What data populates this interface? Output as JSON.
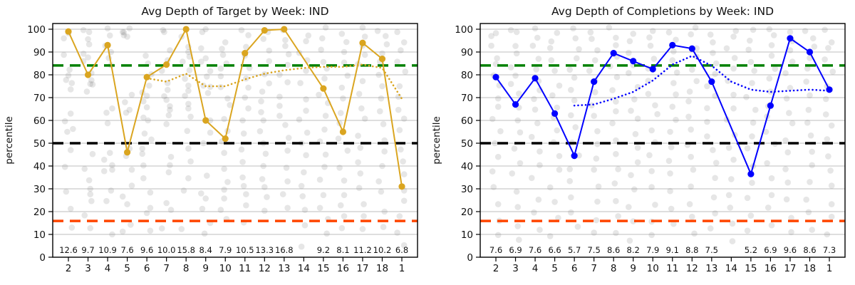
{
  "chart_data": [
    {
      "type": "line",
      "title": "Avg Depth of Target by Week: IND",
      "ylabel": "percentile",
      "color": "#DAA520",
      "weeks": [
        "2",
        "3",
        "4",
        "5",
        "6",
        "7",
        "8",
        "9",
        "10",
        "11",
        "12",
        "13",
        "14",
        "15",
        "16",
        "17",
        "18",
        "1"
      ],
      "series": [
        {
          "name": "weekly-avg-target-depth-percentile",
          "style": "solid-markers",
          "values": [
            99,
            80,
            93,
            46,
            79,
            84.5,
            100,
            60,
            52,
            89.5,
            99.5,
            100,
            null,
            74,
            55,
            94,
            87,
            31
          ]
        },
        {
          "name": "rolling-mean",
          "style": "dotted",
          "values": [
            null,
            null,
            null,
            null,
            78.5,
            77,
            80.5,
            75,
            75,
            78,
            80.5,
            82,
            83,
            83.5,
            83.5,
            84.5,
            83,
            69.5
          ]
        }
      ],
      "annotations": [
        "12.6",
        "9.7",
        "10.9",
        "7.6",
        "9.6",
        "10.0",
        "15.8",
        "8.4",
        "7.9",
        "10.5",
        "13.3",
        "16.8",
        "",
        "9.2",
        "8.1",
        "11.2",
        "10.2",
        "6.8"
      ],
      "background_points": [
        [
          99,
          96,
          88,
          83,
          79,
          77,
          76,
          74,
          63,
          60,
          57,
          55,
          47,
          40,
          28,
          22,
          13
        ],
        [
          100,
          98,
          96,
          93,
          90,
          88,
          86,
          80,
          78,
          76,
          75,
          73,
          46,
          38,
          33,
          30,
          28,
          25,
          18,
          12
        ],
        [
          100,
          98,
          92,
          90,
          87,
          85,
          66,
          63,
          58,
          45,
          42,
          40,
          38,
          37,
          30,
          25,
          10
        ],
        [
          100,
          99,
          98,
          97,
          96,
          72,
          68,
          65,
          63,
          48,
          44,
          38,
          31,
          27,
          24,
          15,
          12
        ],
        [
          88,
          85,
          81,
          76,
          73,
          70,
          68,
          65,
          62,
          60,
          55,
          52,
          48,
          45,
          41,
          35,
          28,
          22,
          19,
          12
        ],
        [
          100,
          98,
          90,
          86,
          81,
          76,
          73,
          71,
          69,
          67,
          65,
          63,
          58,
          44,
          40,
          38,
          23,
          20,
          13
        ],
        [
          96,
          93,
          90,
          88,
          85,
          82,
          79,
          76,
          73,
          70,
          68,
          66,
          62,
          55,
          48,
          42,
          35,
          30,
          12
        ],
        [
          100,
          98,
          92,
          88,
          85,
          82,
          80,
          76,
          74,
          72,
          60,
          55,
          50,
          35,
          28,
          25,
          22,
          15,
          10
        ],
        [
          95,
          91,
          88,
          85,
          82,
          79,
          75,
          70,
          66,
          61,
          55,
          50,
          45,
          38,
          33,
          30,
          25,
          20,
          16
        ],
        [
          100,
          97,
          93,
          88,
          83,
          78,
          74,
          70,
          66,
          60,
          55,
          48,
          41,
          35,
          32,
          28,
          22,
          16
        ],
        [
          98,
          95,
          91,
          86,
          81,
          77,
          73,
          68,
          64,
          60,
          56,
          50,
          45,
          40,
          35,
          30,
          26,
          20
        ],
        [
          100,
          96,
          93,
          89,
          84,
          80,
          76,
          70,
          66,
          62,
          58,
          52,
          46,
          40,
          34,
          28,
          22
        ],
        [
          98,
          94,
          90,
          86,
          81,
          76,
          70,
          65,
          60,
          55,
          50,
          44,
          38,
          32,
          26,
          20,
          14,
          5
        ],
        [
          100,
          96,
          91,
          86,
          82,
          78,
          72,
          68,
          62,
          56,
          50,
          45,
          40,
          34,
          28,
          22,
          16,
          10
        ],
        [
          98,
          94,
          90,
          85,
          80,
          74,
          70,
          64,
          58,
          52,
          46,
          40,
          34,
          28,
          22,
          18,
          12
        ],
        [
          100,
          96,
          92,
          88,
          84,
          78,
          72,
          66,
          60,
          54,
          48,
          42,
          36,
          30,
          24,
          18,
          12
        ],
        [
          100,
          97,
          93,
          89,
          85,
          80,
          75,
          70,
          64,
          58,
          52,
          46,
          40,
          34,
          28,
          20,
          14
        ],
        [
          98,
          95,
          90,
          85,
          81,
          75,
          70,
          65,
          60,
          55,
          48,
          42,
          36,
          30,
          24,
          18,
          10,
          6
        ]
      ]
    },
    {
      "type": "line",
      "title": "Avg Depth of Completions by Week: IND",
      "ylabel": "percentile",
      "color": "#0000FF",
      "weeks": [
        "2",
        "3",
        "4",
        "5",
        "6",
        "7",
        "8",
        "9",
        "10",
        "11",
        "12",
        "13",
        "14",
        "15",
        "16",
        "17",
        "18",
        "1"
      ],
      "series": [
        {
          "name": "weekly-avg-completion-depth-percentile",
          "style": "solid-markers",
          "values": [
            79,
            67,
            78.5,
            63,
            44.5,
            77,
            89.5,
            86,
            82.5,
            93,
            91.5,
            77,
            null,
            36.5,
            66.5,
            96,
            90,
            73.5
          ]
        },
        {
          "name": "rolling-mean",
          "style": "dotted",
          "values": [
            null,
            null,
            null,
            null,
            66.5,
            67,
            69.5,
            72.5,
            77.5,
            84.5,
            88.3,
            84,
            77,
            73.5,
            72.5,
            73,
            73.5,
            73
          ]
        }
      ],
      "annotations": [
        "7.6",
        "6.9",
        "7.6",
        "6.6",
        "5.7",
        "7.5",
        "8.6",
        "8.2",
        "7.9",
        "9.1",
        "8.8",
        "7.5",
        "",
        "5.2",
        "6.9",
        "9.6",
        "8.6",
        "7.3"
      ],
      "background_points": [
        [
          99,
          97,
          92,
          88,
          84,
          79,
          75,
          70,
          66,
          61,
          56,
          50,
          44,
          38,
          30,
          24,
          16,
          9
        ],
        [
          100,
          98,
          93,
          89,
          84,
          80,
          76,
          71,
          66,
          60,
          54,
          48,
          42,
          36,
          28,
          22,
          14,
          8
        ],
        [
          100,
          97,
          92,
          87,
          82,
          78,
          74,
          69,
          64,
          58,
          52,
          46,
          40,
          34,
          26,
          20,
          12
        ],
        [
          98,
          95,
          91,
          86,
          81,
          76,
          71,
          66,
          61,
          56,
          50,
          44,
          38,
          31,
          25,
          18,
          10
        ],
        [
          100,
          96,
          92,
          88,
          83,
          78,
          73,
          68,
          63,
          57,
          51,
          45,
          39,
          33,
          27,
          20,
          13
        ],
        [
          99,
          95,
          90,
          86,
          81,
          77,
          72,
          67,
          62,
          56,
          50,
          44,
          38,
          31,
          24,
          17,
          10
        ],
        [
          100,
          97,
          93,
          88,
          83,
          79,
          74,
          69,
          64,
          58,
          52,
          46,
          39,
          32,
          25,
          18,
          11
        ],
        [
          98,
          94,
          90,
          85,
          80,
          75,
          70,
          65,
          60,
          54,
          48,
          42,
          36,
          29,
          22,
          15,
          8
        ],
        [
          100,
          96,
          92,
          87,
          82,
          77,
          72,
          67,
          62,
          56,
          50,
          44,
          37,
          30,
          23,
          16,
          9
        ],
        [
          99,
          95,
          91,
          86,
          81,
          76,
          71,
          66,
          61,
          55,
          49,
          43,
          36,
          29,
          22,
          15
        ],
        [
          100,
          97,
          92,
          88,
          83,
          78,
          73,
          68,
          62,
          56,
          50,
          44,
          38,
          31,
          24,
          17,
          10
        ],
        [
          98,
          95,
          90,
          85,
          80,
          75,
          70,
          65,
          59,
          53,
          47,
          41,
          34,
          27,
          20,
          13
        ],
        [
          100,
          96,
          92,
          87,
          82,
          77,
          72,
          66,
          60,
          54,
          48,
          42,
          35,
          28,
          21,
          14,
          7
        ],
        [
          99,
          95,
          91,
          86,
          81,
          76,
          71,
          65,
          59,
          53,
          47,
          40,
          33,
          26,
          19,
          12
        ],
        [
          100,
          97,
          93,
          88,
          83,
          78,
          73,
          67,
          61,
          55,
          49,
          42,
          35,
          28,
          21,
          14
        ],
        [
          98,
          94,
          90,
          85,
          80,
          75,
          70,
          64,
          58,
          52,
          46,
          39,
          32,
          25,
          18,
          11
        ],
        [
          100,
          96,
          92,
          87,
          82,
          77,
          71,
          65,
          59,
          53,
          47,
          40,
          33,
          26,
          19,
          12
        ],
        [
          99,
          95,
          91,
          86,
          81,
          75,
          69,
          63,
          57,
          51,
          45,
          38,
          31,
          24,
          17,
          10
        ]
      ]
    }
  ],
  "reference_lines": [
    {
      "name": "upper-band-84th-percentile",
      "y": 84.1,
      "color": "#008000"
    },
    {
      "name": "median-50th-percentile",
      "y": 50,
      "color": "#000000"
    },
    {
      "name": "lower-band-16th-percentile",
      "y": 15.9,
      "color": "#FF4500"
    }
  ],
  "axis": {
    "yticks": [
      "0",
      "10",
      "20",
      "30",
      "40",
      "50",
      "60",
      "70",
      "80",
      "90",
      "100"
    ],
    "ylim": [
      0,
      102.5
    ],
    "grid": "horizontal",
    "scatter_color": "#777777"
  }
}
